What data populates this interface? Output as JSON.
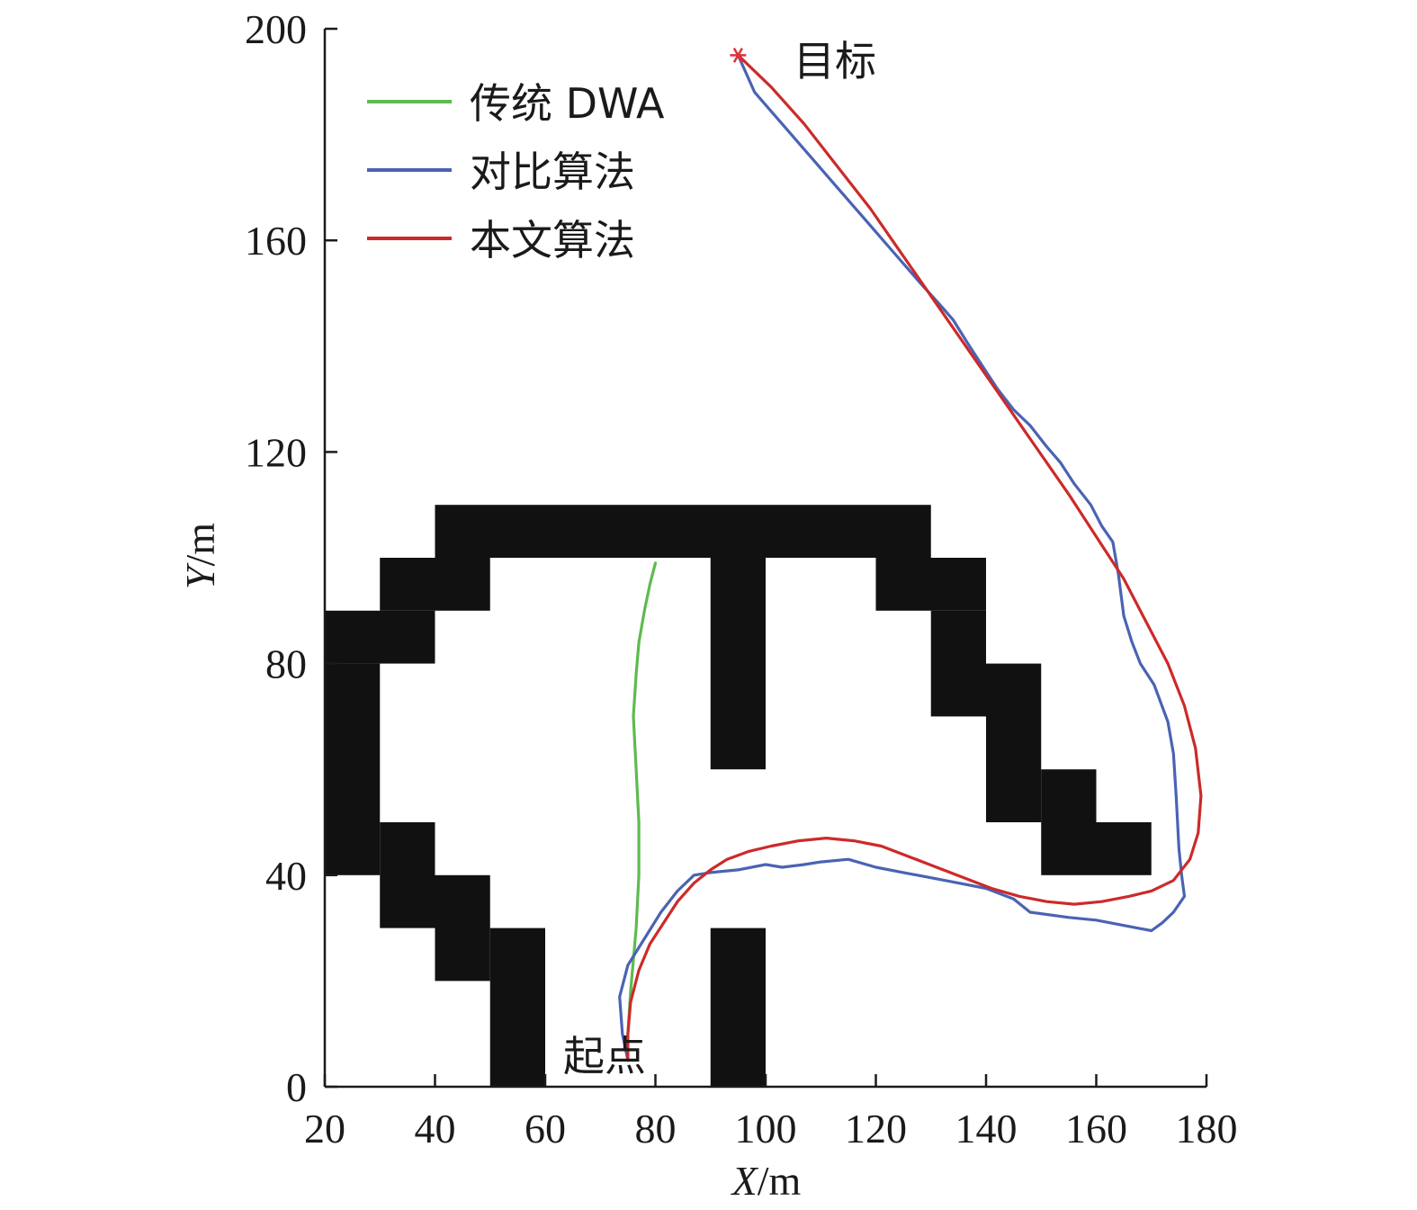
{
  "chart_data": {
    "type": "line",
    "xlabel_var": "X",
    "xlabel_unit": "/m",
    "ylabel_var": "Y",
    "ylabel_unit": "/m",
    "xlim": [
      20,
      180
    ],
    "ylim": [
      0,
      200
    ],
    "xticks": [
      20,
      40,
      60,
      80,
      100,
      120,
      140,
      160,
      180
    ],
    "yticks": [
      0,
      40,
      80,
      120,
      160,
      200
    ],
    "grid": false,
    "legend_position": "top-left",
    "obstacle_color": "#111111",
    "obstacles": [
      [
        40,
        100,
        130,
        110
      ],
      [
        30,
        90,
        50,
        100
      ],
      [
        20,
        80,
        40,
        90
      ],
      [
        20,
        40,
        30,
        80
      ],
      [
        30,
        30,
        40,
        50
      ],
      [
        40,
        20,
        50,
        40
      ],
      [
        50,
        0,
        60,
        30
      ],
      [
        90,
        60,
        100,
        100
      ],
      [
        90,
        0,
        100,
        30
      ],
      [
        120,
        90,
        140,
        100
      ],
      [
        130,
        70,
        140,
        90
      ],
      [
        140,
        50,
        150,
        80
      ],
      [
        150,
        40,
        160,
        60
      ],
      [
        160,
        40,
        170,
        50
      ]
    ],
    "series": [
      {
        "name": "传统 DWA",
        "color": "#5fba4f",
        "points": [
          [
            75,
            5
          ],
          [
            75,
            10
          ],
          [
            75.5,
            18
          ],
          [
            76,
            24
          ],
          [
            76.5,
            30
          ],
          [
            77,
            40
          ],
          [
            77,
            50
          ],
          [
            76.5,
            60
          ],
          [
            76,
            70
          ],
          [
            76.5,
            78
          ],
          [
            77,
            84
          ],
          [
            78,
            90
          ],
          [
            79,
            95
          ],
          [
            80,
            99
          ]
        ]
      },
      {
        "name": "对比算法",
        "color": "#4a63b3",
        "points": [
          [
            75,
            5
          ],
          [
            74,
            10
          ],
          [
            73.5,
            17
          ],
          [
            75,
            23
          ],
          [
            78,
            28
          ],
          [
            81,
            33
          ],
          [
            84,
            37
          ],
          [
            87,
            40
          ],
          [
            90,
            40.5
          ],
          [
            95,
            41
          ],
          [
            100,
            42
          ],
          [
            103,
            41.5
          ],
          [
            107,
            42
          ],
          [
            110,
            42.5
          ],
          [
            115,
            43
          ],
          [
            120,
            41.5
          ],
          [
            125,
            40.5
          ],
          [
            130,
            39.5
          ],
          [
            135,
            38.5
          ],
          [
            140,
            37.5
          ],
          [
            145,
            35.5
          ],
          [
            148,
            33
          ],
          [
            155,
            32
          ],
          [
            160,
            31.5
          ],
          [
            165,
            30.5
          ],
          [
            170,
            29.5
          ],
          [
            172,
            31
          ],
          [
            174,
            33
          ],
          [
            176,
            36
          ],
          [
            175.5,
            40
          ],
          [
            175,
            45
          ],
          [
            174.5,
            55
          ],
          [
            174,
            63
          ],
          [
            173,
            69
          ],
          [
            170.5,
            76
          ],
          [
            168,
            80
          ],
          [
            166.5,
            84
          ],
          [
            165,
            89
          ],
          [
            164,
            97
          ],
          [
            163,
            103
          ],
          [
            161,
            106
          ],
          [
            159,
            110
          ],
          [
            156,
            114
          ],
          [
            153.5,
            118
          ],
          [
            151,
            121
          ],
          [
            148,
            125
          ],
          [
            145,
            128
          ],
          [
            142,
            132
          ],
          [
            139.5,
            136
          ],
          [
            137,
            140
          ],
          [
            134,
            145
          ],
          [
            131.5,
            148
          ],
          [
            128,
            152
          ],
          [
            123,
            158
          ],
          [
            118,
            164
          ],
          [
            113,
            170
          ],
          [
            108,
            176
          ],
          [
            103,
            182
          ],
          [
            98,
            188
          ],
          [
            95,
            195
          ]
        ]
      },
      {
        "name": "本文算法",
        "color": "#cc2a2a",
        "points": [
          [
            75,
            5
          ],
          [
            75,
            10
          ],
          [
            75.5,
            16
          ],
          [
            77,
            22
          ],
          [
            79,
            27
          ],
          [
            81.5,
            31
          ],
          [
            84,
            35
          ],
          [
            87,
            38.5
          ],
          [
            90,
            41
          ],
          [
            93,
            43
          ],
          [
            97,
            44.5
          ],
          [
            101,
            45.5
          ],
          [
            106,
            46.5
          ],
          [
            111,
            47
          ],
          [
            116,
            46.5
          ],
          [
            121,
            45.5
          ],
          [
            126,
            43.5
          ],
          [
            131,
            41.5
          ],
          [
            136,
            39.5
          ],
          [
            141,
            37.5
          ],
          [
            146,
            36
          ],
          [
            151,
            35
          ],
          [
            156,
            34.5
          ],
          [
            161,
            35
          ],
          [
            166,
            36
          ],
          [
            170,
            37
          ],
          [
            174,
            39
          ],
          [
            177,
            43
          ],
          [
            178.5,
            48
          ],
          [
            179,
            55
          ],
          [
            178,
            64
          ],
          [
            176,
            72
          ],
          [
            173,
            80
          ],
          [
            169,
            88
          ],
          [
            165,
            96
          ],
          [
            160,
            104
          ],
          [
            155,
            112
          ],
          [
            149,
            121
          ],
          [
            143,
            130
          ],
          [
            137,
            139
          ],
          [
            131,
            148
          ],
          [
            125,
            157
          ],
          [
            119,
            166
          ],
          [
            113,
            174
          ],
          [
            107,
            182
          ],
          [
            101,
            189
          ],
          [
            95,
            195
          ]
        ]
      }
    ],
    "target_point": [
      95,
      195
    ],
    "target_marker_color": "#e0303a",
    "annotations": {
      "target": "目标",
      "start": "起点"
    }
  }
}
